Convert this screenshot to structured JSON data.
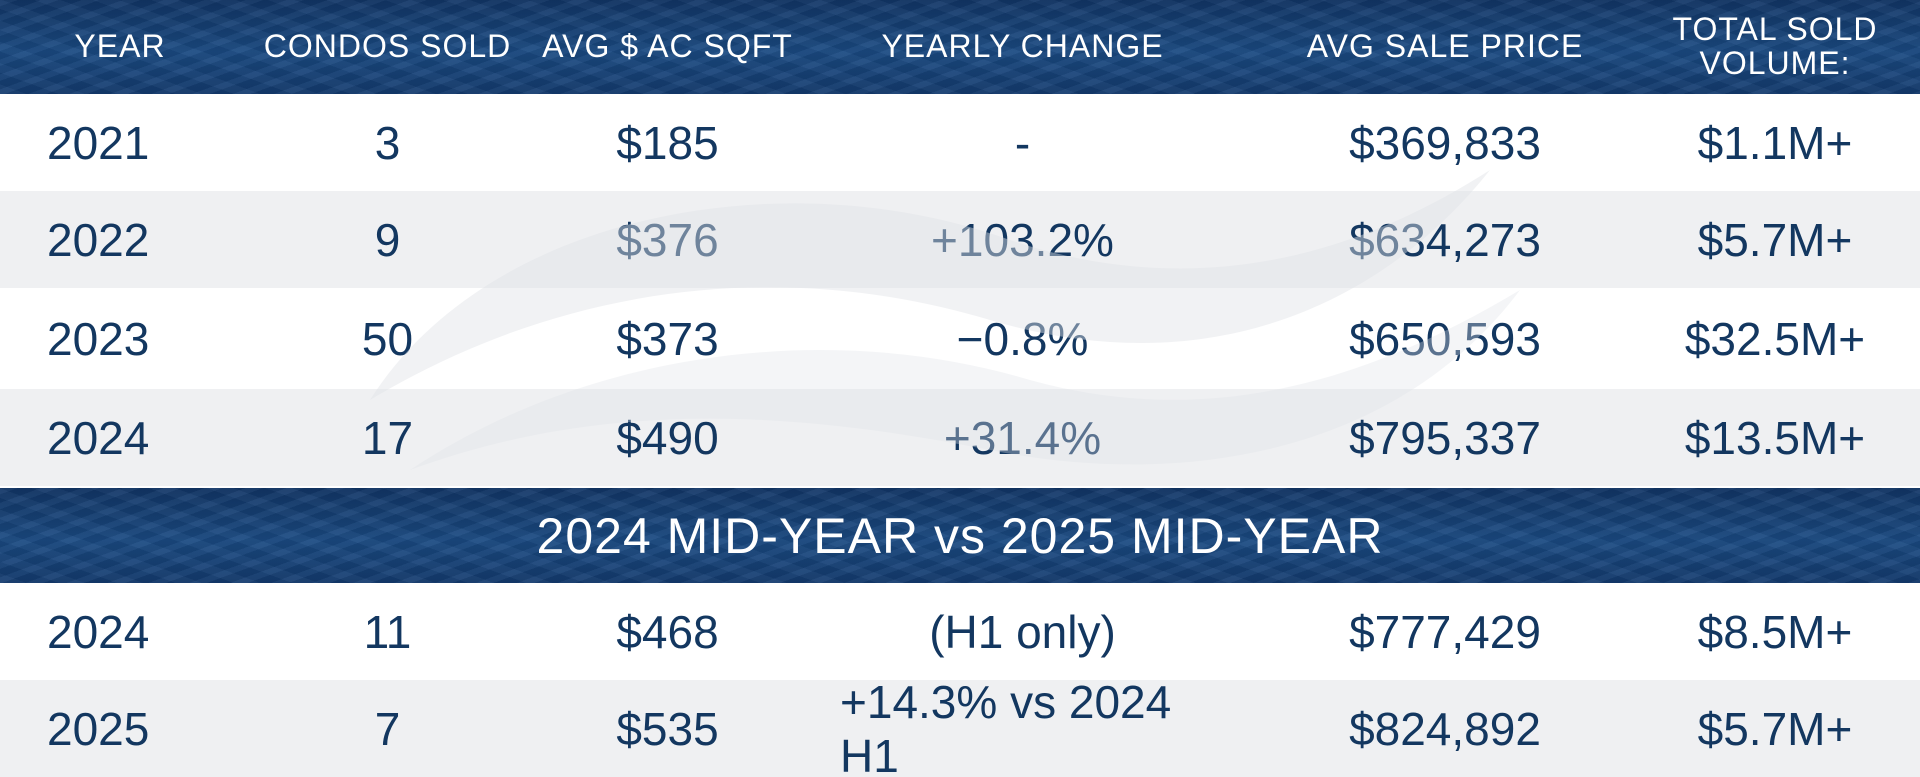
{
  "header": {
    "columns": [
      "YEAR",
      "CONDOS SOLD",
      "AVG $ AC SQFT",
      "YEARLY CHANGE",
      "AVG SALE PRICE",
      "TOTAL SOLD\nVOLUME:"
    ]
  },
  "annual_rows": [
    [
      "2021",
      "3",
      "$185",
      "-",
      "$369,833",
      "$1.1M+"
    ],
    [
      "2022",
      "9",
      "$376",
      "+103.2%",
      "$634,273",
      "$5.7M+"
    ],
    [
      "2023",
      "50",
      "$373",
      "−0.8%",
      "$650,593",
      "$32.5M+"
    ],
    [
      "2024",
      "17",
      "$490",
      "+31.4%",
      "$795,337",
      "$13.5M+"
    ]
  ],
  "section": {
    "title": "2024 MID-YEAR vs 2025 MID-YEAR"
  },
  "midyear_rows": [
    [
      "2024",
      "11",
      "$468",
      "(H1 only)",
      "$777,429",
      "$8.5M+"
    ],
    [
      "2025",
      "7",
      "$535",
      "+14.3% vs 2024 H1",
      "$824,892",
      "$5.7M+"
    ]
  ],
  "colors": {
    "navy": "#123667",
    "text": "#133760",
    "row_gray": "#eff0f2"
  }
}
